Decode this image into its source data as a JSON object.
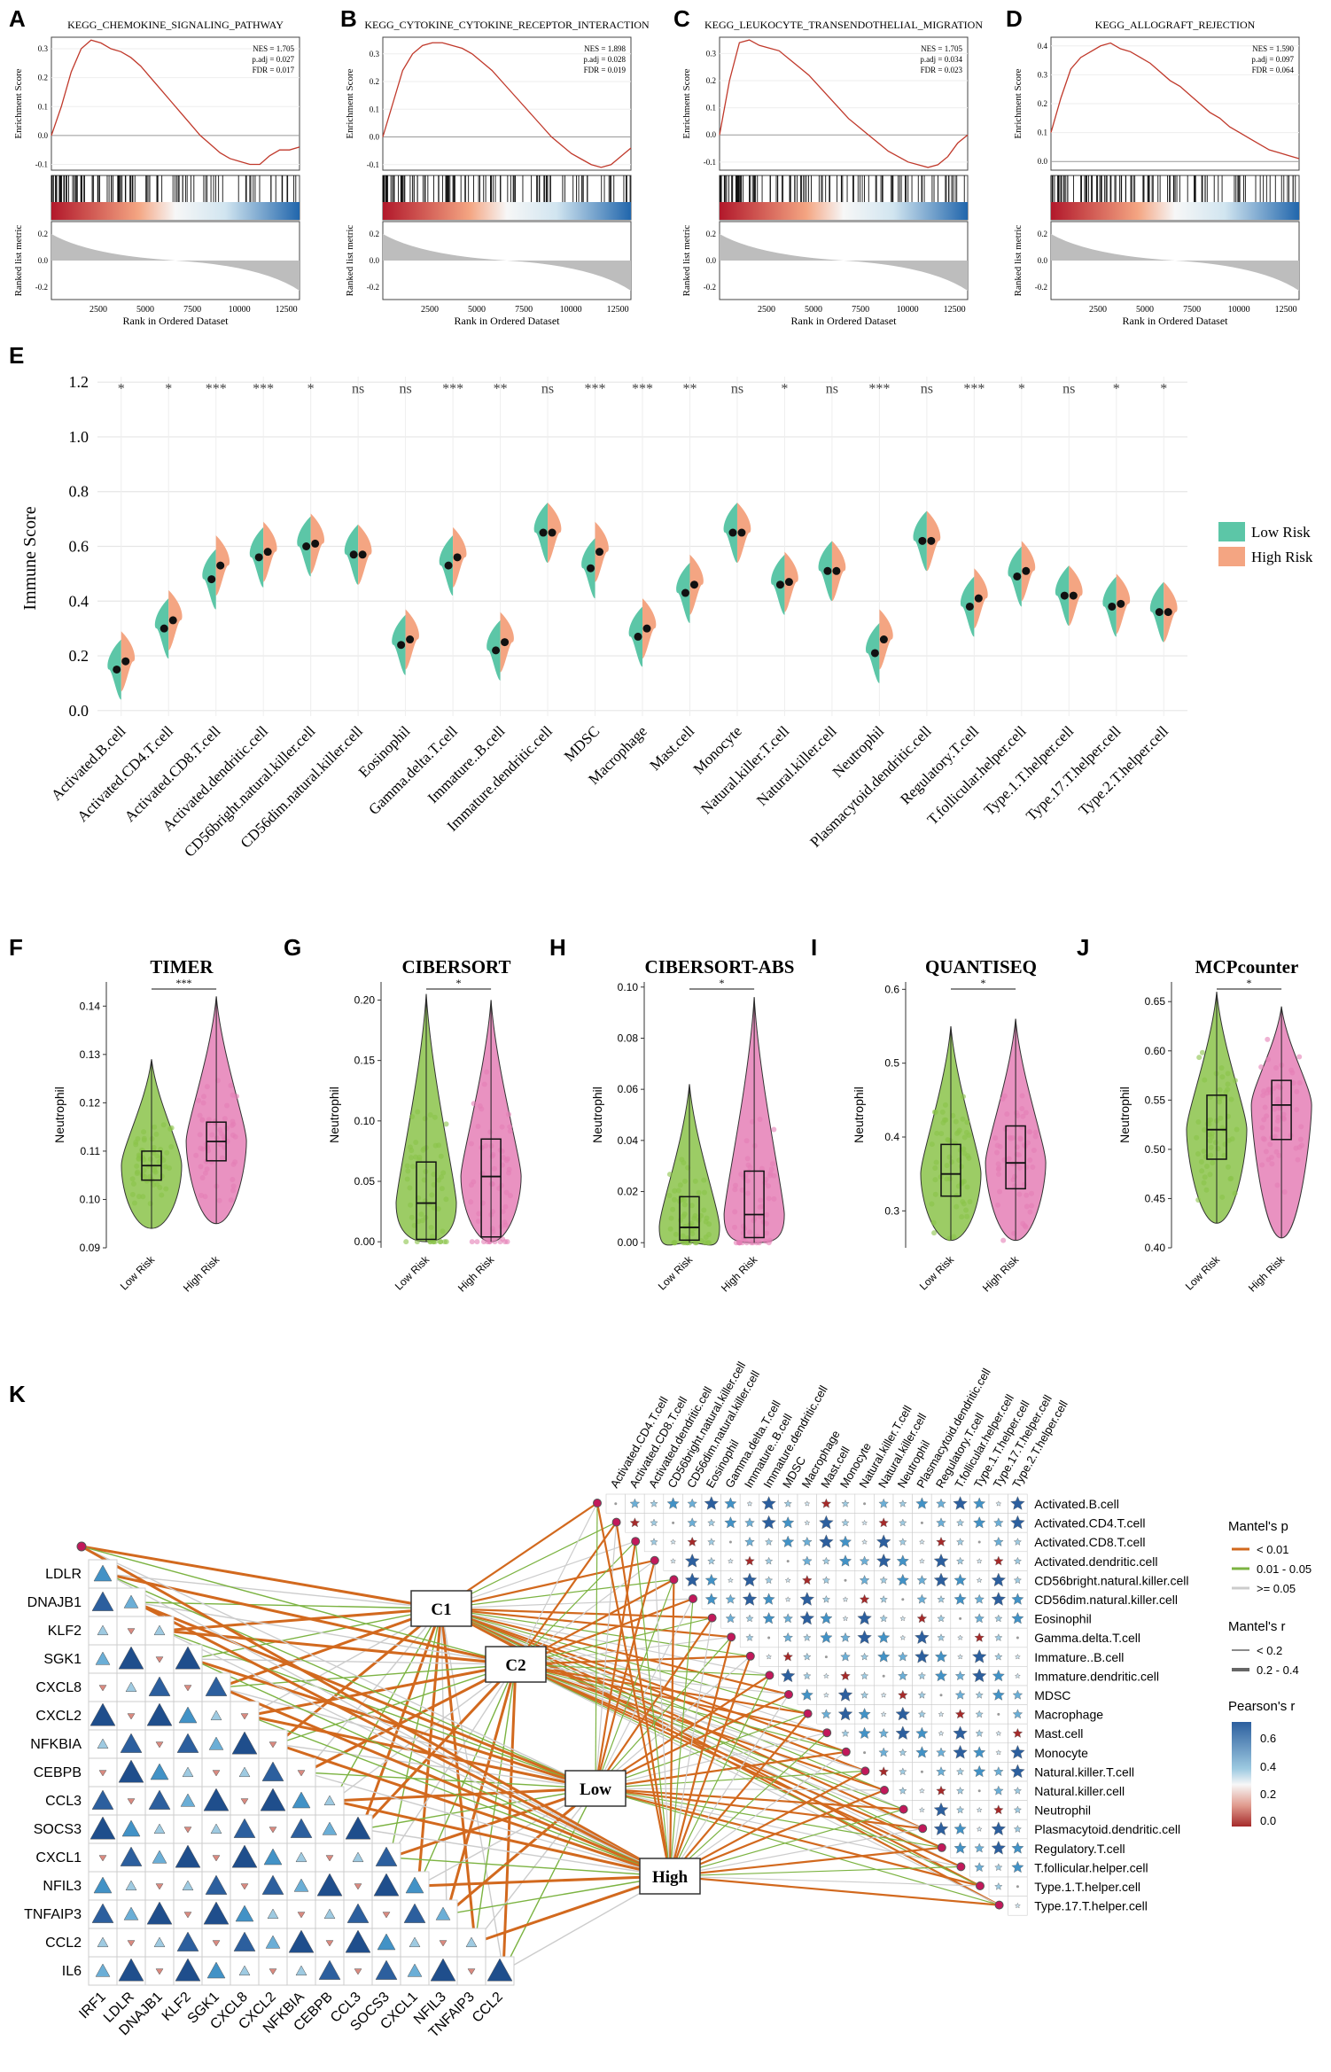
{
  "panel_labels": [
    "A",
    "B",
    "C",
    "D",
    "E",
    "F",
    "G",
    "H",
    "I",
    "J",
    "K"
  ],
  "colors": {
    "gsea_line": "#c0392b",
    "low_risk": "#5cc6a7",
    "high_risk": "#f4a582",
    "violin_low": "#8bc34a",
    "violin_high": "#e57fb6",
    "edge_sig": "#d2691e",
    "edge_mid": "#7cb342",
    "edge_ns": "#cccccc",
    "pearson_high": "#2c5f9e",
    "pearson_low": "#a52a2a"
  },
  "gsea": [
    {
      "panel": "A",
      "title": "KEGG_CHEMOKINE_SIGNALING_PATHWAY",
      "stats": [
        "NES = 1.705",
        "p.adj = 0.027",
        "FDR = 0.017"
      ],
      "es_ticks": [
        "0.3",
        "0.2",
        "0.1",
        "0.0",
        "-0.1"
      ],
      "ylim": [
        -0.12,
        0.34
      ],
      "curve": [
        0,
        0.1,
        0.22,
        0.3,
        0.33,
        0.32,
        0.3,
        0.29,
        0.27,
        0.24,
        0.2,
        0.16,
        0.12,
        0.08,
        0.04,
        0.0,
        -0.03,
        -0.06,
        -0.08,
        -0.09,
        -0.1,
        -0.1,
        -0.07,
        -0.05,
        -0.05,
        -0.04
      ],
      "rank_ticks": [
        "0.2",
        "0.0",
        "-0.2"
      ],
      "x_ticks": [
        "2500",
        "5000",
        "7500",
        "10000",
        "12500"
      ],
      "xlabel": "Rank in Ordered Dataset",
      "ylabel_es": "Enrichment Score",
      "ylabel_rank": "Ranked list metric"
    },
    {
      "panel": "B",
      "title": "KEGG_CYTOKINE_CYTOKINE_RECEPTOR_INTERACTION",
      "stats": [
        "NES = 1.898",
        "p.adj = 0.028",
        "FDR = 0.019"
      ],
      "es_ticks": [
        "0.3",
        "0.2",
        "0.1",
        "0.0",
        "-0.1"
      ],
      "ylim": [
        -0.12,
        0.36
      ],
      "curve": [
        0,
        0.12,
        0.24,
        0.3,
        0.33,
        0.34,
        0.34,
        0.33,
        0.32,
        0.3,
        0.27,
        0.24,
        0.2,
        0.16,
        0.12,
        0.08,
        0.04,
        0.0,
        -0.03,
        -0.06,
        -0.08,
        -0.1,
        -0.11,
        -0.1,
        -0.07,
        -0.04
      ],
      "rank_ticks": [
        "0.2",
        "0.0",
        "-0.2"
      ],
      "x_ticks": [
        "2500",
        "5000",
        "7500",
        "10000",
        "12500"
      ],
      "xlabel": "Rank in Ordered Dataset",
      "ylabel_es": "Enrichment Score",
      "ylabel_rank": "Ranked list metric"
    },
    {
      "panel": "C",
      "title": "KEGG_LEUKOCYTE_TRANSENDOTHELIAL_MIGRATION",
      "stats": [
        "NES = 1.705",
        "p.adj = 0.034",
        "FDR = 0.023"
      ],
      "es_ticks": [
        "0.3",
        "0.2",
        "0.1",
        "0.0",
        "-0.1"
      ],
      "ylim": [
        -0.13,
        0.36
      ],
      "curve": [
        0,
        0.2,
        0.34,
        0.35,
        0.33,
        0.32,
        0.31,
        0.28,
        0.25,
        0.22,
        0.18,
        0.14,
        0.1,
        0.06,
        0.03,
        0.0,
        -0.03,
        -0.06,
        -0.08,
        -0.1,
        -0.11,
        -0.12,
        -0.11,
        -0.08,
        -0.03,
        0.0
      ],
      "rank_ticks": [
        "0.2",
        "0.0",
        "-0.2"
      ],
      "x_ticks": [
        "2500",
        "5000",
        "7500",
        "10000",
        "12500"
      ],
      "xlabel": "Rank in Ordered Dataset",
      "ylabel_es": "Enrichment Score",
      "ylabel_rank": "Ranked list metric"
    },
    {
      "panel": "D",
      "title": "KEGG_ALLOGRAFT_REJECTION",
      "stats": [
        "NES = 1.590",
        "p.adj = 0.097",
        "FDR = 0.064"
      ],
      "es_ticks": [
        "0.4",
        "0.3",
        "0.2",
        "0.1",
        "0.0"
      ],
      "ylim": [
        -0.03,
        0.43
      ],
      "curve": [
        0.1,
        0.22,
        0.32,
        0.36,
        0.38,
        0.4,
        0.41,
        0.39,
        0.38,
        0.36,
        0.34,
        0.31,
        0.28,
        0.26,
        0.23,
        0.2,
        0.17,
        0.15,
        0.12,
        0.1,
        0.08,
        0.06,
        0.04,
        0.03,
        0.02,
        0.01
      ],
      "rank_ticks": [
        "0.2",
        "0.0",
        "-0.2"
      ],
      "x_ticks": [
        "2500",
        "5000",
        "7500",
        "10000",
        "12500"
      ],
      "xlabel": "Rank in Ordered Dataset",
      "ylabel_es": "Enrichment Score",
      "ylabel_rank": "Ranked list metric"
    }
  ],
  "chart_data": [
    {
      "type": "violin",
      "panel": "E",
      "ylabel": "Immune Score",
      "ylim": [
        -0.02,
        1.22
      ],
      "y_ticks": [
        "0.0",
        "0.2",
        "0.4",
        "0.6",
        "0.8",
        "1.0",
        "1.2"
      ],
      "legend": {
        "low": "Low Risk",
        "high": "High Risk"
      },
      "categories": [
        "Activated.B.cell",
        "Activated.CD4.T.cell",
        "Activated.CD8.T.cell",
        "Activated.dendritic.cell",
        "CD56bright.natural.killer.cell",
        "CD56dim.natural.killer.cell",
        "Eosinophil",
        "Gamma.delta.T.cell",
        "Immature..B.cell",
        "Immature.dendritic.cell",
        "MDSC",
        "Macrophage",
        "Mast.cell",
        "Monocyte",
        "Natural.killer.T.cell",
        "Natural.killer.cell",
        "Neutrophil",
        "Plasmacytoid.dendritic.cell",
        "Regulatory.T.cell",
        "T.follicular.helper.cell",
        "Type.1.T.helper.cell",
        "Type.17.T.helper.cell",
        "Type.2.T.helper.cell"
      ],
      "low_median": [
        0.15,
        0.3,
        0.48,
        0.56,
        0.6,
        0.57,
        0.24,
        0.53,
        0.22,
        0.65,
        0.52,
        0.27,
        0.43,
        0.65,
        0.46,
        0.51,
        0.21,
        0.62,
        0.38,
        0.49,
        0.42,
        0.38,
        0.36
      ],
      "high_median": [
        0.18,
        0.33,
        0.53,
        0.58,
        0.61,
        0.57,
        0.26,
        0.56,
        0.25,
        0.65,
        0.58,
        0.3,
        0.46,
        0.65,
        0.47,
        0.51,
        0.26,
        0.62,
        0.41,
        0.51,
        0.42,
        0.39,
        0.36
      ],
      "significance": [
        "*",
        "*",
        "***",
        "***",
        "*",
        "ns",
        "ns",
        "***",
        "**",
        "ns",
        "***",
        "***",
        "**",
        "ns",
        "*",
        "ns",
        "***",
        "ns",
        "***",
        "*",
        "ns",
        "*",
        "*"
      ]
    },
    {
      "type": "violin",
      "panel": "F",
      "title": "TIMER",
      "ylabel": "Neutrophil",
      "ylim": [
        0.09,
        0.145
      ],
      "y_ticks": [
        "0.09",
        "0.10",
        "0.11",
        "0.12",
        "0.13",
        "0.14"
      ],
      "groups": [
        "Low Risk",
        "High Risk"
      ],
      "median": [
        0.107,
        0.112
      ],
      "q1": [
        0.104,
        0.108
      ],
      "q3": [
        0.11,
        0.116
      ],
      "min": [
        0.094,
        0.095
      ],
      "max": [
        0.129,
        0.142
      ],
      "sig": "***"
    },
    {
      "type": "violin",
      "panel": "G",
      "title": "CIBERSORT",
      "ylabel": "Neutrophil",
      "ylim": [
        -0.005,
        0.215
      ],
      "y_ticks": [
        "0.00",
        "0.05",
        "0.10",
        "0.15",
        "0.20"
      ],
      "groups": [
        "Low Risk",
        "High Risk"
      ],
      "median": [
        0.032,
        0.054
      ],
      "q1": [
        0.002,
        0.004
      ],
      "q3": [
        0.066,
        0.085
      ],
      "min": [
        0.0,
        0.0
      ],
      "max": [
        0.205,
        0.2
      ],
      "sig": "*"
    },
    {
      "type": "violin",
      "panel": "H",
      "title": "CIBERSORT-ABS",
      "ylabel": "Neutrophil",
      "ylim": [
        -0.002,
        0.102
      ],
      "y_ticks": [
        "0.00",
        "0.02",
        "0.04",
        "0.06",
        "0.08",
        "0.10"
      ],
      "groups": [
        "Low Risk",
        "High Risk"
      ],
      "median": [
        0.006,
        0.011
      ],
      "q1": [
        0.001,
        0.002
      ],
      "q3": [
        0.018,
        0.028
      ],
      "min": [
        0.0,
        0.0
      ],
      "max": [
        0.062,
        0.096
      ],
      "sig": "*"
    },
    {
      "type": "violin",
      "panel": "I",
      "title": "QUANTISEQ",
      "ylabel": "Neutrophil",
      "ylim": [
        0.25,
        0.61
      ],
      "y_ticks": [
        "0.3",
        "0.4",
        "0.5",
        "0.6"
      ],
      "groups": [
        "Low Risk",
        "High Risk"
      ],
      "median": [
        0.35,
        0.365
      ],
      "q1": [
        0.32,
        0.33
      ],
      "q3": [
        0.39,
        0.415
      ],
      "min": [
        0.26,
        0.26
      ],
      "max": [
        0.55,
        0.56
      ],
      "sig": "*"
    },
    {
      "type": "violin",
      "panel": "J",
      "title": "MCPcounter",
      "ylabel": "Neutrophil",
      "ylim": [
        0.4,
        0.67
      ],
      "y_ticks": [
        "0.40",
        "0.45",
        "0.50",
        "0.55",
        "0.60",
        "0.65"
      ],
      "groups": [
        "Low Risk",
        "High Risk"
      ],
      "median": [
        0.52,
        0.545
      ],
      "q1": [
        0.49,
        0.51
      ],
      "q3": [
        0.555,
        0.57
      ],
      "min": [
        0.425,
        0.41
      ],
      "max": [
        0.66,
        0.645
      ],
      "sig": "*"
    }
  ],
  "panelK": {
    "genes": [
      "IRF1",
      "LDLR",
      "DNAJB1",
      "KLF2",
      "SGK1",
      "CXCL8",
      "CXCL2",
      "NFKBIA",
      "CEBPB",
      "CCL3",
      "SOCS3",
      "CXCL1",
      "NFIL3",
      "TNFAIP3",
      "CCL2",
      "IL6"
    ],
    "groups": [
      "C1",
      "C2",
      "Low",
      "High"
    ],
    "cells": [
      "Activated.B.cell",
      "Activated.CD4.T.cell",
      "Activated.CD8.T.cell",
      "Activated.dendritic.cell",
      "CD56bright.natural.killer.cell",
      "CD56dim.natural.killer.cell",
      "Eosinophil",
      "Gamma.delta.T.cell",
      "Immature..B.cell",
      "Immature.dendritic.cell",
      "MDSC",
      "Macrophage",
      "Mast.cell",
      "Monocyte",
      "Natural.killer.T.cell",
      "Natural.killer.cell",
      "Neutrophil",
      "Plasmacytoid.dendritic.cell",
      "Regulatory.T.cell",
      "T.follicular.helper.cell",
      "Type.1.T.helper.cell",
      "Type.17.T.helper.cell"
    ],
    "col_labels": [
      "Activated.CD4.T.cell",
      "Activated.CD8.T.cell",
      "Activated.dendritic.cell",
      "CD56bright.natural.killer.cell",
      "CD56dim.natural.killer.cell",
      "Eosinophil",
      "Gamma.delta.T.cell",
      "Immature..B.cell",
      "Immature.dendritic.cell",
      "MDSC",
      "Macrophage",
      "Mast.cell",
      "Monocyte",
      "Natural.killer.T.cell",
      "Natural.killer.cell",
      "Neutrophil",
      "Plasmacytoid.dendritic.cell",
      "Regulatory.T.cell",
      "T.follicular.helper.cell",
      "Type.1.T.helper.cell",
      "Type.17.T.helper.cell",
      "Type.2.T.helper.cell"
    ],
    "legend": {
      "mantel_p_title": "Mantel's p",
      "mantel_p_items": [
        "< 0.01",
        "0.01 - 0.05",
        ">= 0.05"
      ],
      "mantel_r_title": "Mantel's r",
      "mantel_r_items": [
        "< 0.2",
        "0.2 - 0.4"
      ],
      "pearson_title": "Pearson's r",
      "pearson_ticks": [
        "0.6",
        "0.4",
        "0.2",
        "0.0"
      ]
    }
  }
}
